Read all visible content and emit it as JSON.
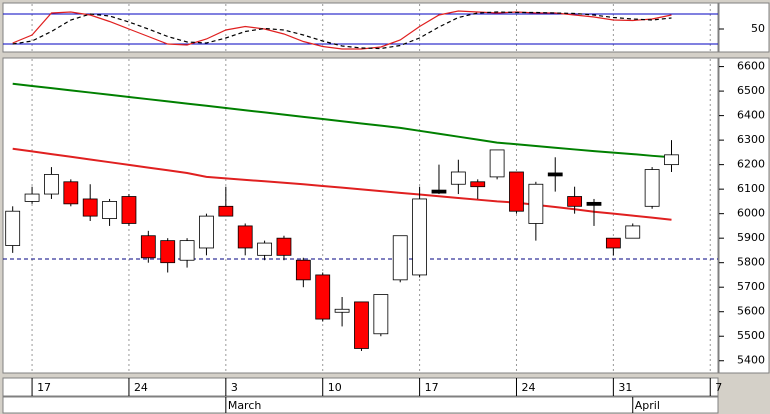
{
  "chart_data": [
    {
      "type": "candlestick",
      "x": [
        0,
        1,
        2,
        3,
        4,
        5,
        6,
        7,
        8,
        9,
        10,
        11,
        12,
        13,
        14,
        15,
        16,
        17,
        18,
        19,
        20,
        21,
        22,
        23,
        24,
        25,
        26,
        27,
        28,
        29,
        30,
        31,
        32,
        33,
        34
      ],
      "open": [
        5870,
        6050,
        6080,
        6130,
        6060,
        5980,
        6070,
        5910,
        5890,
        5810,
        5860,
        6030,
        5950,
        5830,
        5900,
        5810,
        5750,
        5600,
        5640,
        5510,
        5730,
        5750,
        6090,
        6120,
        6130,
        6150,
        6170,
        5960,
        6160,
        6070,
        6040,
        5900,
        5900,
        6030,
        6200
      ],
      "high": [
        6030,
        6110,
        6190,
        6140,
        6120,
        6060,
        6080,
        5930,
        5900,
        5900,
        6000,
        6110,
        5960,
        5890,
        5910,
        5820,
        5760,
        5660,
        5640,
        5670,
        5910,
        6110,
        6200,
        6220,
        6140,
        6260,
        6170,
        6130,
        6230,
        6110,
        6060,
        5900,
        5960,
        6190,
        6300
      ],
      "low": [
        5840,
        6040,
        6060,
        6030,
        5970,
        5950,
        5950,
        5800,
        5760,
        5780,
        5830,
        5990,
        5830,
        5810,
        5810,
        5700,
        5560,
        5540,
        5440,
        5500,
        5720,
        5740,
        6080,
        6080,
        6060,
        6140,
        6000,
        5890,
        6090,
        6000,
        5950,
        5830,
        5900,
        6020,
        6170
      ],
      "close": [
        6010,
        6080,
        6160,
        6040,
        5990,
        6050,
        5960,
        5820,
        5800,
        5890,
        5990,
        5990,
        5860,
        5880,
        5830,
        5730,
        5570,
        5610,
        5450,
        5670,
        5910,
        6060,
        6090,
        6170,
        6110,
        6260,
        6010,
        6120,
        6160,
        6030,
        6040,
        5860,
        5950,
        6180,
        6240
      ],
      "up_color": "#ffffff",
      "down_color": "#ff0000",
      "flat_color": "#000000",
      "series": [
        {
          "color": "#008000",
          "values": [
            6530,
            6521,
            6512,
            6503,
            6494,
            6485,
            6476,
            6467,
            6458,
            6449,
            6440,
            6431,
            6422,
            6413,
            6404,
            6395,
            6386,
            6377,
            6368,
            6359,
            6350,
            6338,
            6326,
            6314,
            6302,
            6290,
            6283,
            6276,
            6269,
            6262,
            6255,
            6249,
            6243,
            6236,
            6230
          ]
        },
        {
          "color": "#e02020",
          "values": [
            6265,
            6254,
            6243,
            6232,
            6221,
            6210,
            6199,
            6188,
            6177,
            6166,
            6150,
            6144,
            6138,
            6132,
            6126,
            6120,
            6113,
            6106,
            6099,
            6092,
            6085,
            6078,
            6071,
            6064,
            6057,
            6050,
            6045,
            6036,
            6027,
            6018,
            6008,
            6000,
            5992,
            5984,
            5975
          ]
        }
      ],
      "reference_line": {
        "value": 5815,
        "color": "#000080"
      },
      "xlim": [
        -0.5,
        36.4
      ],
      "xticks": [
        {
          "value": 1,
          "label": "17"
        },
        {
          "value": 6,
          "label": "24"
        },
        {
          "value": 11,
          "label": "3"
        },
        {
          "value": 16,
          "label": "10"
        },
        {
          "value": 21,
          "label": "17"
        },
        {
          "value": 26,
          "label": "24"
        },
        {
          "value": 31,
          "label": "31"
        },
        {
          "value": 36,
          "label": "7"
        }
      ],
      "months": [
        {
          "value": 11,
          "label": "March"
        },
        {
          "value": 32,
          "label": "April"
        }
      ],
      "ylim": [
        5350,
        6635
      ],
      "yticks": [
        5400,
        5500,
        5600,
        5700,
        5800,
        5900,
        6000,
        6100,
        6200,
        6300,
        6400,
        6500,
        6600
      ],
      "grid": true
    },
    {
      "type": "line",
      "series": [
        {
          "color": "#e02020",
          "style": "solid",
          "values": [
            22,
            38,
            82,
            84,
            78,
            65,
            50,
            35,
            20,
            18,
            30,
            48,
            55,
            50,
            40,
            25,
            15,
            10,
            10,
            14,
            28,
            55,
            78,
            86,
            84,
            82,
            84,
            82,
            82,
            78,
            74,
            68,
            67,
            70,
            78
          ]
        },
        {
          "color": "#000000",
          "style": "dashed",
          "values": [
            20,
            26,
            45,
            68,
            80,
            76,
            64,
            50,
            35,
            24,
            22,
            32,
            45,
            51,
            48,
            38,
            26,
            16,
            12,
            11,
            17,
            32,
            54,
            73,
            82,
            84,
            83,
            83,
            82,
            81,
            78,
            73,
            70,
            68,
            72
          ]
        }
      ],
      "levels": [
        80,
        20
      ],
      "level_color": "#0000c0",
      "ylim": [
        4,
        102
      ],
      "yticks": [
        50
      ]
    }
  ]
}
